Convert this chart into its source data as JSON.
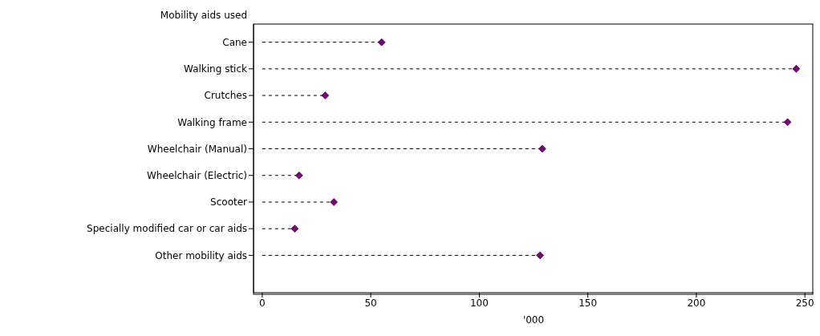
{
  "chart_data": {
    "type": "lollipop",
    "orientation": "horizontal",
    "ylabel": "Mobility aids used",
    "xlabel": "'000",
    "categories": [
      "Cane",
      "Walking stick",
      "Crutches",
      "Walking frame",
      "Wheelchair (Manual)",
      "Wheelchair (Electric)",
      "Scooter",
      "Specially modified car or car aids",
      "Other mobility aids"
    ],
    "values": [
      55,
      246,
      29,
      242,
      129,
      17,
      33,
      15,
      128
    ],
    "color": "#800080",
    "marker": "diamond",
    "line_style": "dashed",
    "xlim": [
      -4,
      254
    ],
    "xticks": [
      0,
      50,
      100,
      150,
      200,
      250
    ]
  }
}
